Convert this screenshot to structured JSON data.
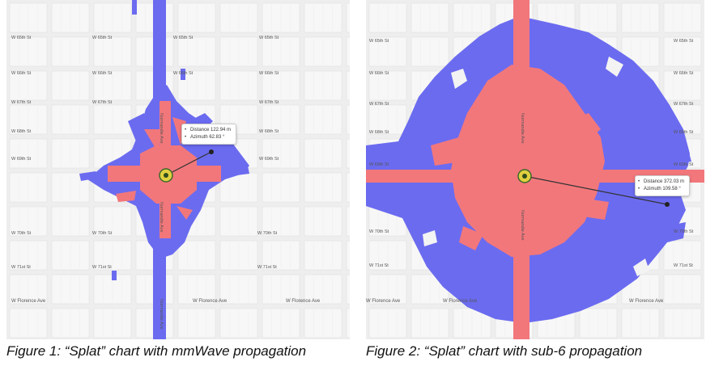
{
  "figures": [
    {
      "caption": "Figure 1: “Splat” chart with mmWave propagation",
      "tooltip": {
        "distance": "Distance 122.94 m",
        "azimuth": "Azimuth 62.83 °"
      },
      "streets": [
        "W 65th St",
        "W 66th St",
        "W 67th St",
        "W 68th St",
        "W 69th St",
        "W 70th St",
        "W 71st St",
        "W Florence Ave",
        "Normandie Ave"
      ]
    },
    {
      "caption": "Figure 2: “Splat” chart with sub-6 propagation",
      "tooltip": {
        "distance": "Distance 372.03 m",
        "azimuth": "Azimuth 109.58 °"
      },
      "streets": [
        "W 65th St",
        "W 66th St",
        "W 67th St",
        "W 68th St",
        "W 69th St",
        "W 70th St",
        "W 71st St",
        "W Florence Ave",
        "Normandie Ave"
      ]
    }
  ],
  "colors": {
    "blue": "#6b6bf0",
    "red": "#f2777b",
    "background": "#eeeeee",
    "block": "#f7f7f7",
    "street": "#e3e3e3"
  }
}
